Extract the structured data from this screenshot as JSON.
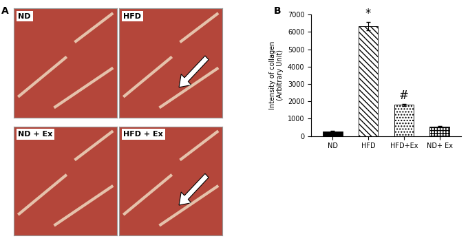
{
  "figure": {
    "panel_labels": [
      "A",
      "B"
    ],
    "images": [
      "ND",
      "HFD",
      "ND + Ex",
      "HFD + Ex"
    ]
  },
  "chart_data": {
    "type": "bar",
    "y_label": "Intensity of collagen\n(Arbitrary Unit)",
    "categories": [
      "ND",
      "HFD",
      "HFD+Ex",
      "ND+ Ex"
    ],
    "values": [
      280,
      6330,
      1800,
      560
    ],
    "errors": [
      30,
      250,
      50,
      30
    ],
    "colors": [
      "#000000",
      "#ffffff",
      "#ffffff",
      "#ffffff"
    ],
    "ylim": [
      0,
      7000
    ],
    "yticks": [
      0,
      1000,
      2000,
      3000,
      4000,
      5000,
      6000,
      7000
    ],
    "annotations": [
      {
        "text": "*",
        "category": "HFD"
      },
      {
        "text": "#",
        "category": "HFD+Ex"
      }
    ],
    "grid": false
  }
}
